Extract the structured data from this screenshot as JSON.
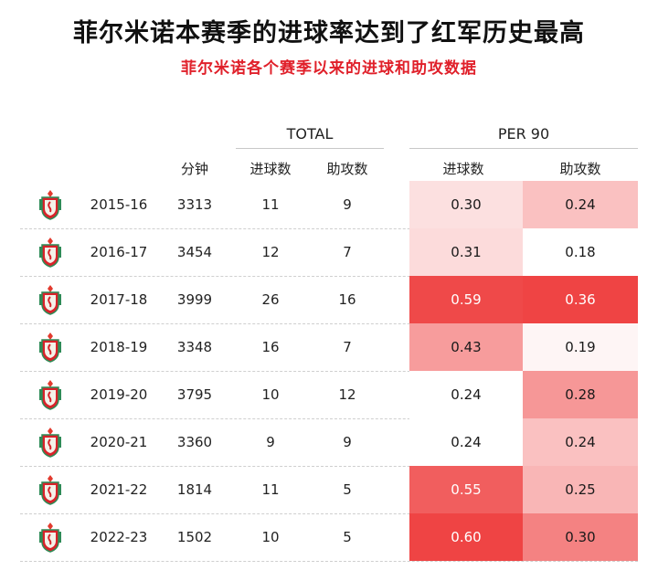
{
  "header": {
    "title": "菲尔米诺本赛季的进球率达到了红军历史最高",
    "subtitle": "菲尔米诺各个赛季以来的进球和助攻数据"
  },
  "groups": {
    "total": "TOTAL",
    "per90": "PER 90"
  },
  "columns": {
    "minutes": "分钟",
    "goals": "进球数",
    "assists": "助攻数",
    "goals90": "进球数",
    "assists90": "助攻数"
  },
  "colors": {
    "accent": "#e0202a",
    "heat_max": "#ef4444",
    "heat_min": "#ffffff"
  },
  "row_icon": "liverpool-crest-icon",
  "chart_data": {
    "type": "table",
    "title": "菲尔米诺本赛季的进球率达到了红军历史最高",
    "subtitle": "菲尔米诺各个赛季以来的进球和助攻数据",
    "rows": [
      {
        "season": "2015-16",
        "minutes": "3313",
        "goals": "11",
        "assists": "9",
        "goals90": "0.30",
        "assists90": "0.24"
      },
      {
        "season": "2016-17",
        "minutes": "3454",
        "goals": "12",
        "assists": "7",
        "goals90": "0.31",
        "assists90": "0.18"
      },
      {
        "season": "2017-18",
        "minutes": "3999",
        "goals": "26",
        "assists": "16",
        "goals90": "0.59",
        "assists90": "0.36"
      },
      {
        "season": "2018-19",
        "minutes": "3348",
        "goals": "16",
        "assists": "7",
        "goals90": "0.43",
        "assists90": "0.19"
      },
      {
        "season": "2019-20",
        "minutes": "3795",
        "goals": "10",
        "assists": "12",
        "goals90": "0.24",
        "assists90": "0.28"
      },
      {
        "season": "2020-21",
        "minutes": "3360",
        "goals": "9",
        "assists": "9",
        "goals90": "0.24",
        "assists90": "0.24"
      },
      {
        "season": "2021-22",
        "minutes": "1814",
        "goals": "11",
        "assists": "5",
        "goals90": "0.55",
        "assists90": "0.25"
      },
      {
        "season": "2022-23",
        "minutes": "1502",
        "goals": "10",
        "assists": "5",
        "goals90": "0.60",
        "assists90": "0.30"
      }
    ]
  }
}
